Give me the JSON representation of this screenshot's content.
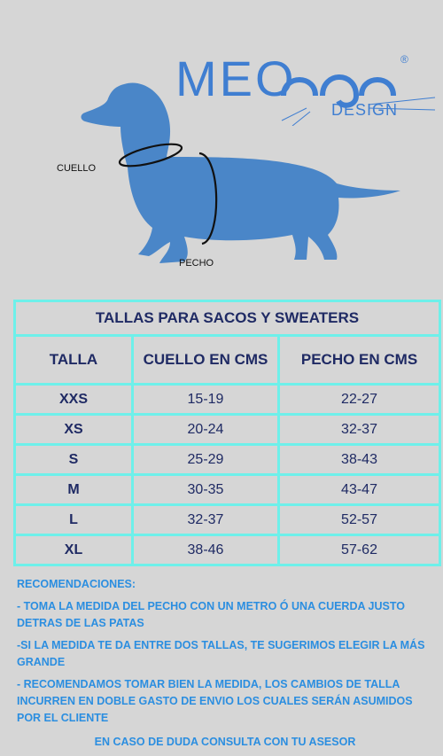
{
  "logo": {
    "brand": "MEO",
    "sub": "DESIGN",
    "reg": "®"
  },
  "diagram": {
    "neck_label": "CUELLO",
    "chest_label": "PECHO"
  },
  "table": {
    "title": "TALLAS PARA SACOS Y SWEATERS",
    "headers": [
      "TALLA",
      "CUELLO EN CMS",
      "PECHO EN CMS"
    ],
    "rows": [
      [
        "XXS",
        "15-19",
        "22-27"
      ],
      [
        "XS",
        "20-24",
        "32-37"
      ],
      [
        "S",
        "25-29",
        "38-43"
      ],
      [
        "M",
        "30-35",
        "43-47"
      ],
      [
        "L",
        "32-37",
        "52-57"
      ],
      [
        "XL",
        "38-46",
        "57-62"
      ]
    ]
  },
  "recommendations": {
    "heading": "RECOMENDACIONES:",
    "items": [
      "- TOMA LA MEDIDA DEL PECHO CON UN METRO Ó UNA CUERDA JUSTO DETRAS DE LAS PATAS",
      "-SI LA MEDIDA TE DA ENTRE DOS TALLAS, TE SUGERIMOS ELEGIR LA MÁS GRANDE",
      "- RECOMENDAMOS TOMAR BIEN LA MEDIDA, LOS CAMBIOS DE TALLA INCURREN EN DOBLE GASTO DE ENVIO LOS CUALES SERÁN ASUMIDOS POR EL CLIENTE"
    ],
    "footer": "EN CASO DE DUDA CONSULTA CON TU ASESOR"
  },
  "colors": {
    "brand": "#3f7ed1",
    "dog": "#4a86c8",
    "table_border": "#6ef0ea",
    "table_text": "#1f2a64",
    "rec_text": "#2b8ee0",
    "background": "#d6d6d6"
  }
}
